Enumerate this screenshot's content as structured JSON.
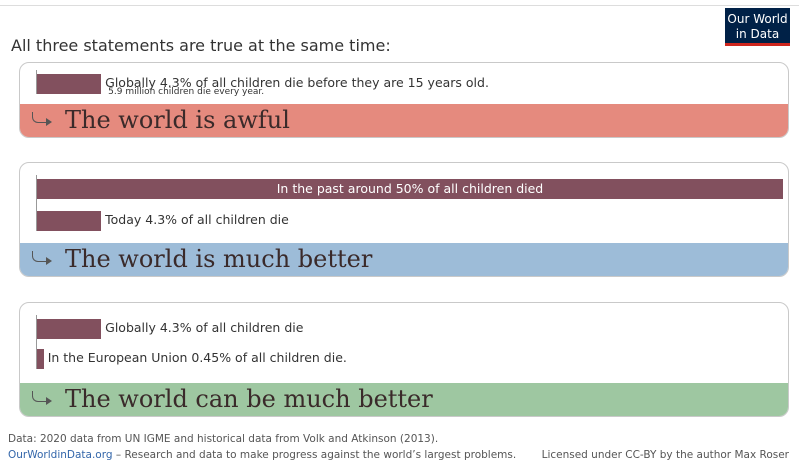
{
  "header": {
    "title": "All three statements are true at the same time:",
    "logo": [
      "Our World",
      "in Data"
    ]
  },
  "panels": [
    {
      "bars": [
        {
          "value": 4.3,
          "label": "Globally 4.3% of all children die before they are 15 years old.",
          "note": "5.9 million children die every year."
        }
      ],
      "verdict": "The world is awful",
      "color": "#e58a7e"
    },
    {
      "bars": [
        {
          "value": 50,
          "label": "In the past around 50% of all children died"
        },
        {
          "value": 4.3,
          "label": "Today 4.3% of all children die"
        }
      ],
      "verdict": "The world is much better",
      "color": "#9dbcd8"
    },
    {
      "bars": [
        {
          "value": 4.3,
          "label": "Globally 4.3% of all children die"
        },
        {
          "value": 0.45,
          "label": "In the European Union 0.45% of all children die."
        }
      ],
      "verdict": "The world can be much better",
      "color": "#9ec7a1"
    }
  ],
  "bar_color": "#82505e",
  "footer": {
    "source": "Data: 2020 data from UN IGME and historical data from Volk and Atkinson (2013).",
    "site": "OurWorldinData.org",
    "tagline": "– Research and data to make progress against the world’s largest problems.",
    "license": "Licensed under CC-BY by the author Max Roser"
  }
}
